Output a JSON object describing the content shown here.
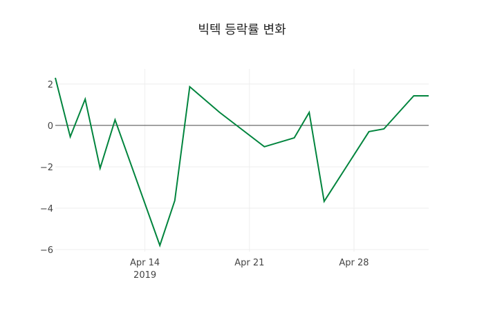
{
  "chart_data": {
    "type": "line",
    "title": "빅텍 등락률 변화",
    "xlabel": "",
    "ylabel": "",
    "x_range": [
      "2019-04-08",
      "2019-05-03"
    ],
    "ylim": [
      -6.1,
      2.73
    ],
    "grid": true,
    "line_color": "#00843D",
    "x_ticks": [
      {
        "date": "2019-04-14",
        "label": "Apr 14",
        "sublabel": "2019"
      },
      {
        "date": "2019-04-21",
        "label": "Apr 21",
        "sublabel": ""
      },
      {
        "date": "2019-04-28",
        "label": "Apr 28",
        "sublabel": ""
      }
    ],
    "y_ticks": [
      {
        "value": 2,
        "label": "2"
      },
      {
        "value": 0,
        "label": "0"
      },
      {
        "value": -2,
        "label": "−2"
      },
      {
        "value": -4,
        "label": "−4"
      },
      {
        "value": -6,
        "label": "−6"
      }
    ],
    "series": [
      {
        "name": "등락률",
        "x": [
          "2019-04-08",
          "2019-04-09",
          "2019-04-10",
          "2019-04-11",
          "2019-04-12",
          "2019-04-15",
          "2019-04-16",
          "2019-04-17",
          "2019-04-19",
          "2019-04-22",
          "2019-04-24",
          "2019-04-25",
          "2019-04-26",
          "2019-04-29",
          "2019-04-30",
          "2019-05-02",
          "2019-05-03"
        ],
        "values": [
          2.3,
          -0.55,
          1.27,
          -2.07,
          0.27,
          -5.8,
          -3.63,
          1.87,
          0.63,
          -1.03,
          -0.6,
          0.63,
          -3.67,
          -0.3,
          -0.17,
          1.43,
          1.43
        ]
      }
    ]
  }
}
